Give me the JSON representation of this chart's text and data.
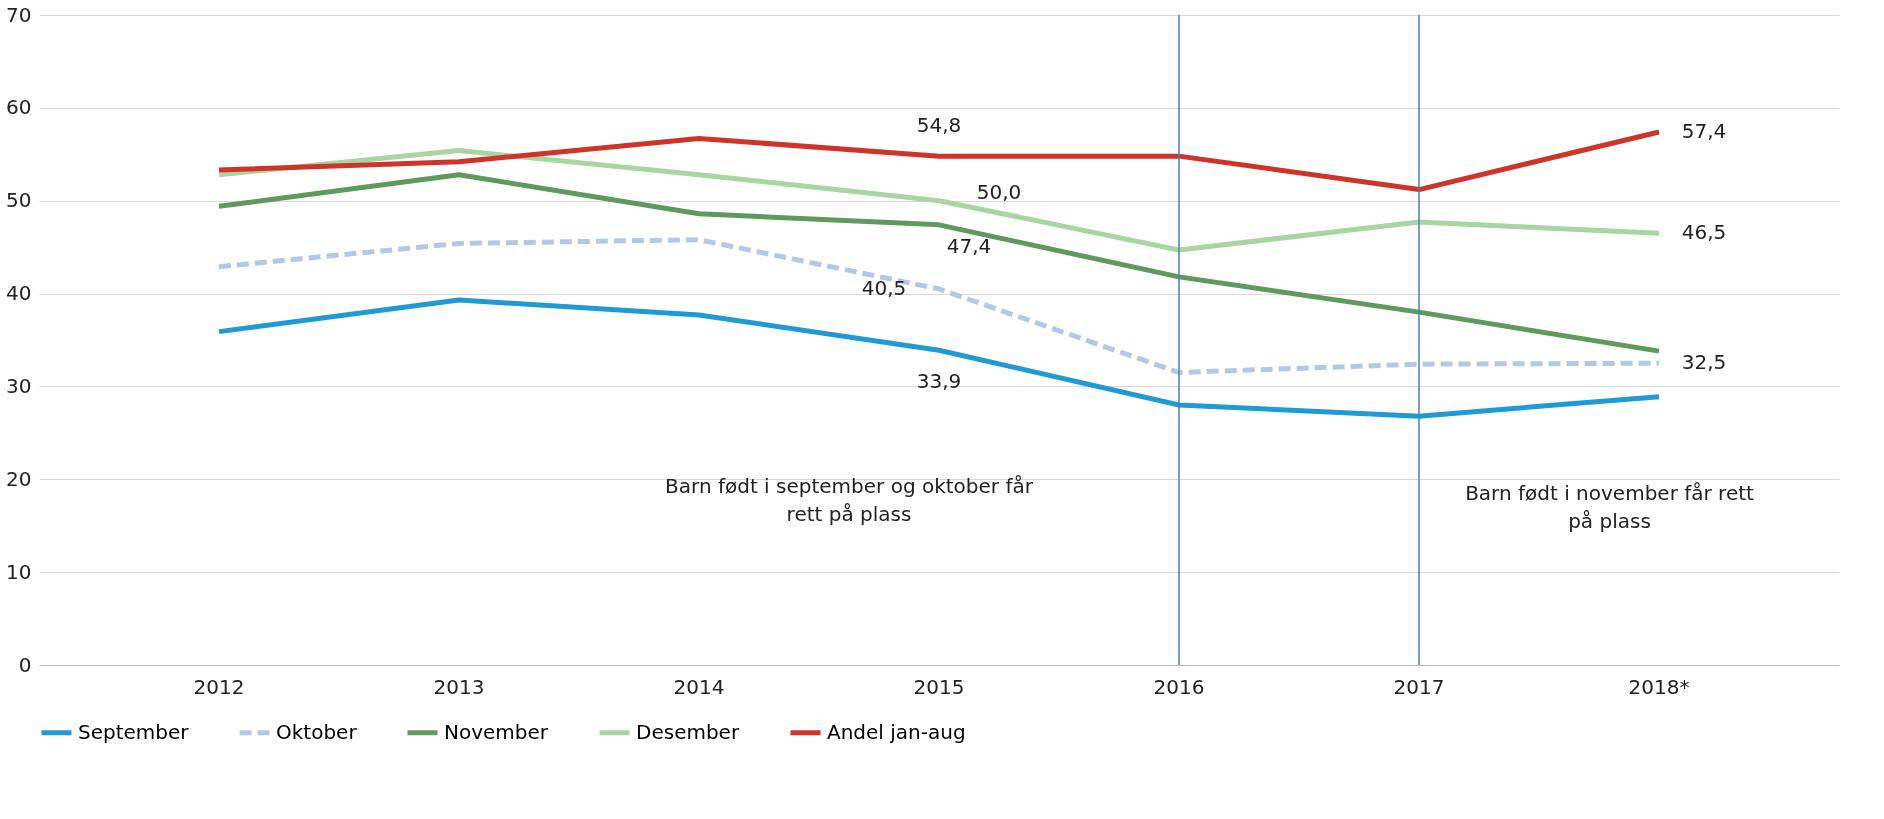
{
  "chart_data": {
    "type": "line",
    "categories": [
      "2012",
      "2013",
      "2014",
      "2015",
      "2016",
      "2017",
      "2018*"
    ],
    "series": [
      {
        "name": "September",
        "color": "#1f9ad6",
        "line_style": "solid",
        "values": [
          35.9,
          39.3,
          37.7,
          33.9,
          28.0,
          26.8,
          28.9
        ],
        "value_labels": [
          null,
          null,
          null,
          "33,9",
          null,
          null,
          null
        ]
      },
      {
        "name": "Oktober",
        "color": "#b4c7e7",
        "line_style": "dashed",
        "values": [
          42.9,
          45.4,
          45.8,
          40.5,
          31.5,
          32.4,
          32.5
        ],
        "value_labels": [
          null,
          null,
          null,
          "40,5",
          null,
          null,
          "32,5"
        ]
      },
      {
        "name": "November",
        "color": "#5e9a5e",
        "line_style": "solid",
        "values": [
          49.4,
          52.8,
          48.6,
          47.4,
          41.8,
          38.0,
          33.8
        ],
        "value_labels": [
          null,
          null,
          null,
          "47,4",
          null,
          null,
          null
        ]
      },
      {
        "name": "Desember",
        "color": "#a8d5a2",
        "line_style": "solid",
        "values": [
          52.8,
          55.4,
          52.8,
          50.0,
          44.7,
          47.7,
          46.5
        ],
        "value_labels": [
          null,
          null,
          null,
          "50,0",
          null,
          null,
          "46,5"
        ]
      },
      {
        "name": "Andel jan-aug",
        "color": "#d0332a",
        "line_style": "solid",
        "values": [
          53.3,
          54.2,
          56.7,
          54.8,
          54.8,
          51.2,
          57.4
        ],
        "value_labels": [
          null,
          null,
          null,
          "54,8",
          null,
          null,
          "57,4"
        ]
      }
    ],
    "ylim": [
      0,
      70
    ],
    "yticks": [
      0,
      10,
      20,
      30,
      40,
      50,
      60,
      70
    ],
    "grid": "y",
    "legend": "bottom",
    "marker": "none",
    "ref_lines": [
      {
        "axis": "x",
        "value": "2016",
        "color": "#4a7ebb"
      },
      {
        "axis": "x",
        "value": "2017",
        "color": "#4a7ebb"
      }
    ],
    "annotations": [
      "Barn født i september og oktober får rett på plass",
      "Barn født i november får rett på plass"
    ]
  }
}
